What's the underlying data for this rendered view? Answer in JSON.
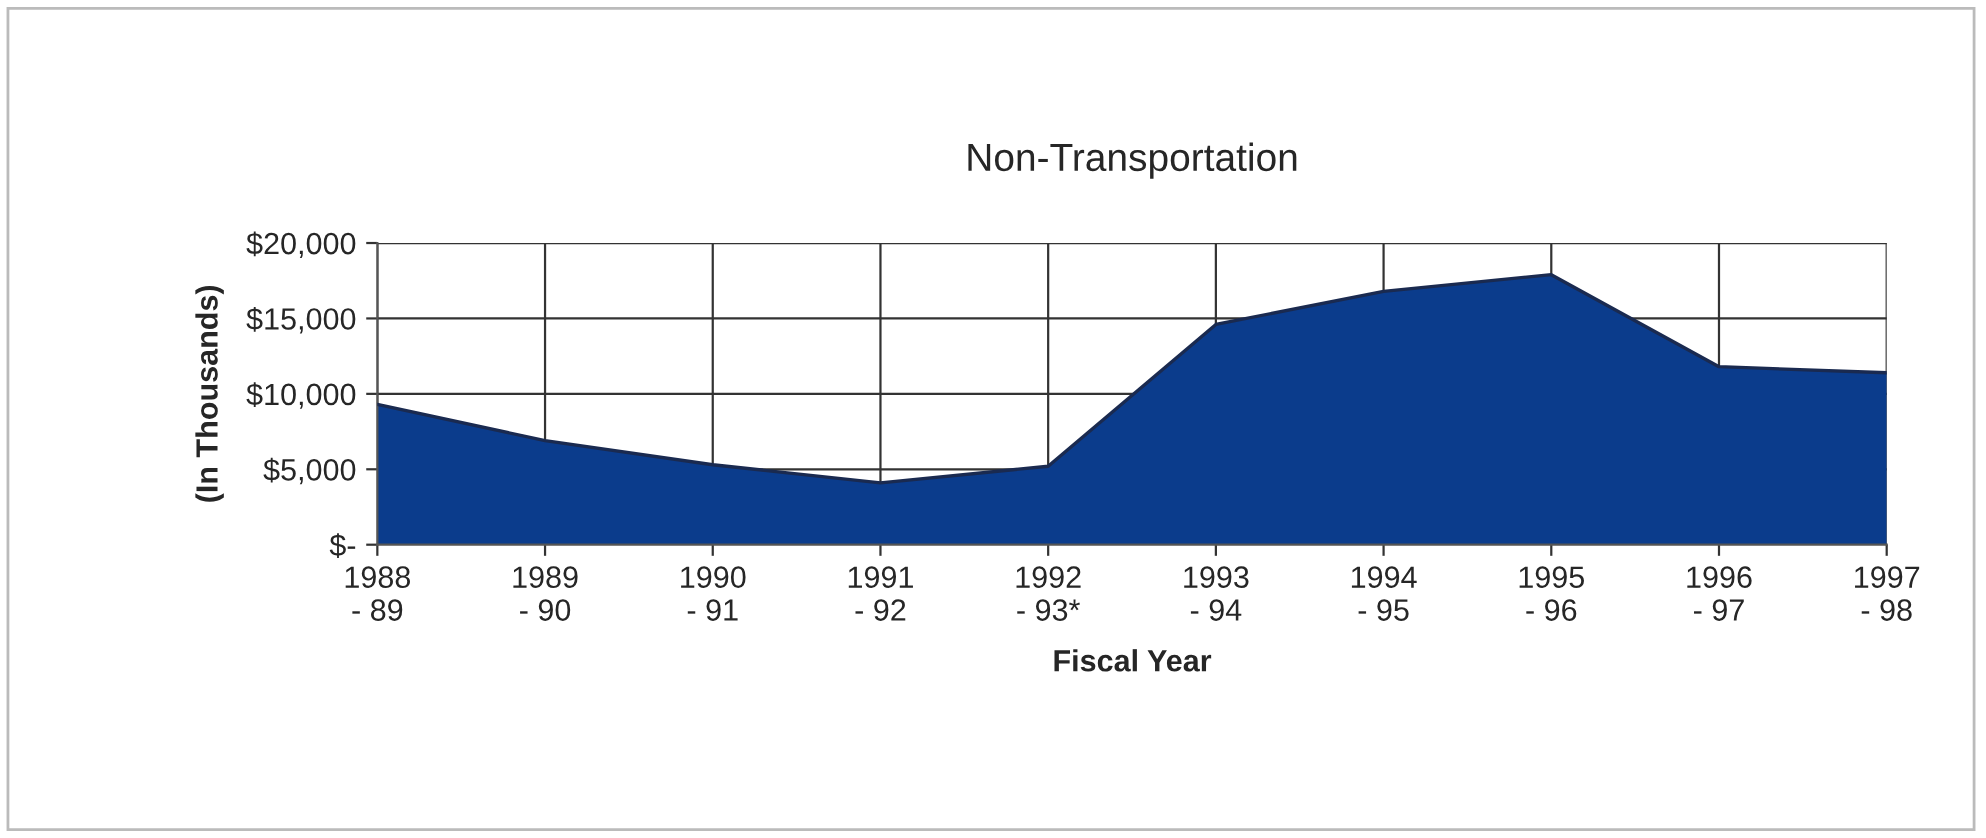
{
  "chart_data": {
    "type": "area",
    "title": "Non-Transportation",
    "xlabel": "Fiscal Year",
    "ylabel": "(In Thousands)",
    "categories": [
      "1988\n- 89",
      "1989\n- 90",
      "1990\n- 91",
      "1991\n- 92",
      "1992\n- 93*",
      "1993\n- 94",
      "1994\n- 95",
      "1995\n- 96",
      "1996\n- 97",
      "1997\n- 98"
    ],
    "series": [
      {
        "color": "#0b3c8c",
        "values": [
          9300,
          6900,
          5300,
          4100,
          5200,
          14600,
          16800,
          17900,
          11800,
          11400
        ]
      }
    ],
    "ylim": [
      0,
      20000
    ],
    "yticks": [
      {
        "value": 0,
        "label": "$-"
      },
      {
        "value": 5000,
        "label": "$5,000"
      },
      {
        "value": 10000,
        "label": "$10,000"
      },
      {
        "value": 15000,
        "label": "$15,000"
      },
      {
        "value": 20000,
        "label": "$20,000"
      }
    ],
    "grid": true,
    "legend": false
  }
}
